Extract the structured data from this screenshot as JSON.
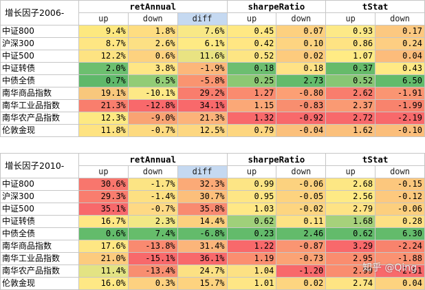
{
  "tables": [
    {
      "title": "增长因子2006-",
      "groups": [
        "retAnnual",
        "sharpeRatio",
        "tStat"
      ],
      "subheaders": [
        "up",
        "down",
        "diff",
        "up",
        "down",
        "up",
        "down"
      ],
      "rows": [
        {
          "name": "中证800",
          "values": [
            "9.4%",
            "1.8%",
            "7.6%",
            "0.45",
            "0.07",
            "0.93",
            "0.17"
          ],
          "colors": [
            "#fde87f",
            "#fedd81",
            "#f8e886",
            "#ffe883",
            "#fdd07f",
            "#fde987",
            "#fcc880"
          ]
        },
        {
          "name": "沪深300",
          "values": [
            "8.7%",
            "2.6%",
            "6.1%",
            "0.42",
            "0.10",
            "0.86",
            "0.24"
          ],
          "colors": [
            "#fee683",
            "#fce084",
            "#feea84",
            "#ffe683",
            "#fdd481",
            "#fee383",
            "#fdce82"
          ]
        },
        {
          "name": "中证500",
          "values": [
            "12.2%",
            "0.6%",
            "11.6%",
            "0.52",
            "0.02",
            "1.07",
            "0.04"
          ],
          "colors": [
            "#fde382",
            "#fdd27f",
            "#e9e382",
            "#fde583",
            "#fdcb7d",
            "#ffeb84",
            "#fcbc7b"
          ]
        },
        {
          "name": "中证转债",
          "values": [
            "2.0%",
            "3.8%",
            "-1.9%",
            "0.18",
            "0.18",
            "0.37",
            "0.43"
          ],
          "colors": [
            "#6cbf6f",
            "#ffe685",
            "#fcb77a",
            "#6cbe70",
            "#ffe286",
            "#66bb6a",
            "#ffe985"
          ]
        },
        {
          "name": "中债全债",
          "values": [
            "0.7%",
            "6.5%",
            "-5.8%",
            "0.25",
            "2.73",
            "0.52",
            "6.50"
          ],
          "colors": [
            "#5fb86a",
            "#92cc76",
            "#fa9470",
            "#8cc873",
            "#63bb6b",
            "#88c674",
            "#63bb6b"
          ]
        },
        {
          "name": "南华商品指数",
          "values": [
            "19.1%",
            "-10.1%",
            "29.2%",
            "1.27",
            "-0.80",
            "2.62",
            "-1.91"
          ],
          "colors": [
            "#f8c77c",
            "#fde886",
            "#f97d6d",
            "#fa8b6f",
            "#fc9f74",
            "#f97d6d",
            "#fa9572"
          ]
        },
        {
          "name": "南华工业品指数",
          "values": [
            "21.3%",
            "-12.8%",
            "34.1%",
            "1.15",
            "-0.83",
            "2.37",
            "-1.99"
          ],
          "colors": [
            "#f97e6d",
            "#f8696b",
            "#f8696b",
            "#fba877",
            "#f88e6f",
            "#fa9a73",
            "#f8836d"
          ]
        },
        {
          "name": "南华农产品指数",
          "values": [
            "12.3%",
            "-9.0%",
            "21.3%",
            "1.32",
            "-0.92",
            "2.72",
            "-2.19"
          ],
          "colors": [
            "#fde982",
            "#f9a373",
            "#fcb37a",
            "#f8696b",
            "#f8696b",
            "#f8696b",
            "#f8696b"
          ]
        },
        {
          "name": "伦敦金现",
          "values": [
            "11.8%",
            "-0.7%",
            "12.5%",
            "0.79",
            "-0.04",
            "1.62",
            "-0.10"
          ],
          "colors": [
            "#fee382",
            "#fdda80",
            "#fdd781",
            "#fdd680",
            "#fbc07c",
            "#fbc07c",
            "#fbbe7b"
          ]
        }
      ]
    },
    {
      "title": "增长因子2010-",
      "groups": [
        "retAnnual",
        "sharpeRatio",
        "tStat"
      ],
      "subheaders": [
        "up",
        "down",
        "diff",
        "up",
        "down",
        "up",
        "down"
      ],
      "rows": [
        {
          "name": "中证800",
          "values": [
            "30.6%",
            "-1.7%",
            "32.3%",
            "0.99",
            "-0.06",
            "2.68",
            "-0.15"
          ],
          "colors": [
            "#f8766d",
            "#fce484",
            "#fbaa77",
            "#fde585",
            "#fcd27f",
            "#fde784",
            "#fcc77d"
          ]
        },
        {
          "name": "沪深300",
          "values": [
            "29.3%",
            "-1.4%",
            "30.7%",
            "0.95",
            "-0.05",
            "2.56",
            "-0.12"
          ],
          "colors": [
            "#f97d6e",
            "#fde082",
            "#fcbf7b",
            "#fee685",
            "#fdd37f",
            "#feea85",
            "#fdc97e"
          ]
        },
        {
          "name": "中证500",
          "values": [
            "35.1%",
            "-0.7%",
            "35.8%",
            "1.03",
            "-0.02",
            "2.79",
            "-0.06"
          ],
          "colors": [
            "#f8696b",
            "#fed984",
            "#f98a70",
            "#ffe886",
            "#fdd580",
            "#fee385",
            "#fccf7e"
          ]
        },
        {
          "name": "中证转债",
          "values": [
            "16.7%",
            "2.3%",
            "14.4%",
            "0.62",
            "0.11",
            "1.68",
            "0.28"
          ],
          "colors": [
            "#ffe784",
            "#f2e885",
            "#fdd07e",
            "#9fd07a",
            "#fee284",
            "#a6d17b",
            "#fee084"
          ]
        },
        {
          "name": "中债全债",
          "values": [
            "0.6%",
            "7.4%",
            "-6.8%",
            "0.23",
            "2.46",
            "0.62",
            "6.30"
          ],
          "colors": [
            "#63bb6b",
            "#66bd6b",
            "#63bb6b",
            "#63bb6b",
            "#63bb6b",
            "#63bb6b",
            "#63bb6b"
          ]
        },
        {
          "name": "南华商品指数",
          "values": [
            "17.6%",
            "-13.8%",
            "31.4%",
            "1.22",
            "-0.87",
            "3.29",
            "-2.24"
          ],
          "colors": [
            "#fee683",
            "#f98a70",
            "#fbb57a",
            "#f8696b",
            "#fa9572",
            "#f8696b",
            "#f8836d"
          ]
        },
        {
          "name": "南华工业品指数",
          "values": [
            "21.0%",
            "-15.1%",
            "36.1%",
            "1.19",
            "-0.73",
            "2.95",
            "-1.88"
          ],
          "colors": [
            "#fccb7e",
            "#f8696b",
            "#f8696b",
            "#fb8e70",
            "#fba375",
            "#fa8d6f",
            "#fa9272"
          ]
        },
        {
          "name": "南华农产品指数",
          "values": [
            "11.4%",
            "-13.4%",
            "24.7%",
            "1.04",
            "-1.20",
            "2.99",
            "-2.61"
          ],
          "colors": [
            "#e3e383",
            "#f88e70",
            "#fce183",
            "#fce183",
            "#f8696b",
            "#fa8d6f",
            "#f8696b"
          ]
        },
        {
          "name": "伦敦金现",
          "values": [
            "16.0%",
            "0.3%",
            "15.7%",
            "1.01",
            "0.02",
            "2.74",
            "0.04"
          ],
          "colors": [
            "#fee885",
            "#fdd180",
            "#fdd37f",
            "#fee685",
            "#fdd580",
            "#fee483",
            "#fdd37f"
          ]
        }
      ]
    }
  ],
  "watermark": "知乎 @Qing"
}
